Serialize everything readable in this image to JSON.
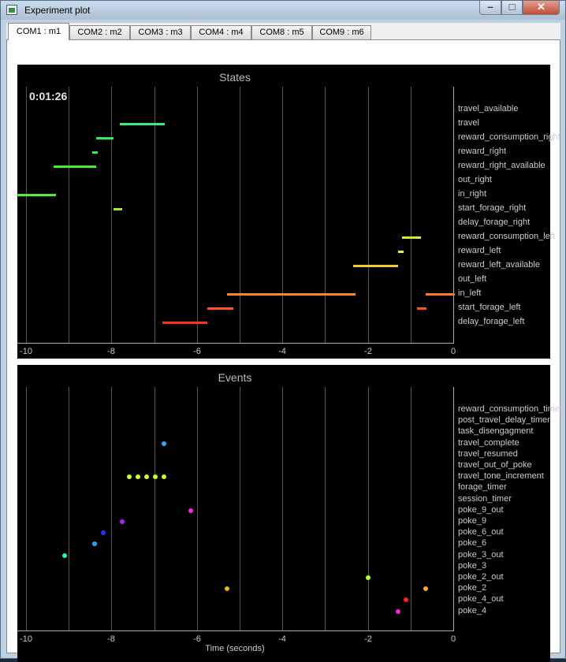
{
  "window": {
    "title": "Experiment plot",
    "controls": {
      "minimize": "–",
      "maximize": "□",
      "close": "✕"
    }
  },
  "tabs": [
    {
      "label": "COM1 : m1",
      "active": true
    },
    {
      "label": "COM2 : m2",
      "active": false
    },
    {
      "label": "COM3 : m3",
      "active": false
    },
    {
      "label": "COM4 : m4",
      "active": false
    },
    {
      "label": "COM8 : m5",
      "active": false
    },
    {
      "label": "COM9 : m6",
      "active": false
    }
  ],
  "states_plot": {
    "title": "States",
    "timer": "0:01:26",
    "xticks": [
      "-10",
      "-8",
      "-6",
      "-4",
      "-2",
      "0"
    ],
    "xlim": [
      -10,
      0
    ],
    "rows": [
      "travel_available",
      "travel",
      "reward_consumption_right",
      "reward_right",
      "reward_right_available",
      "out_right",
      "in_right",
      "start_forage_right",
      "delay_forage_right",
      "reward_consumption_left",
      "reward_left",
      "reward_left_available",
      "out_left",
      "in_left",
      "start_forage_left",
      "delay_forage_left"
    ],
    "segments": [
      {
        "row": "travel",
        "start": -7.8,
        "end": -6.75,
        "color": "#33ee77"
      },
      {
        "row": "reward_consumption_right",
        "start": -8.35,
        "end": -7.95,
        "color": "#33ee55"
      },
      {
        "row": "reward_right",
        "start": -8.45,
        "end": -8.33,
        "color": "#33ee44"
      },
      {
        "row": "reward_right_available",
        "start": -9.35,
        "end": -8.35,
        "color": "#44ee33"
      },
      {
        "row": "in_right",
        "start": -10.2,
        "end": -9.3,
        "color": "#55ee33"
      },
      {
        "row": "start_forage_right",
        "start": -7.95,
        "end": -7.75,
        "color": "#99ee33"
      },
      {
        "row": "reward_consumption_left",
        "start": -1.2,
        "end": -0.75,
        "color": "#ccee33"
      },
      {
        "row": "reward_left",
        "start": -1.3,
        "end": -1.18,
        "color": "#eeee33"
      },
      {
        "row": "reward_left_available",
        "start": -2.35,
        "end": -1.3,
        "color": "#eecc33"
      },
      {
        "row": "in_left",
        "start": -5.3,
        "end": -2.3,
        "color": "#ff8822"
      },
      {
        "row": "in_left",
        "start": -0.65,
        "end": 0.05,
        "color": "#ff7722"
      },
      {
        "row": "start_forage_left",
        "start": -5.75,
        "end": -5.15,
        "color": "#ff5522"
      },
      {
        "row": "start_forage_left",
        "start": -0.85,
        "end": -0.62,
        "color": "#ff5522"
      },
      {
        "row": "delay_forage_left",
        "start": -6.8,
        "end": -5.75,
        "color": "#ff3322"
      }
    ]
  },
  "events_plot": {
    "title": "Events",
    "xlabel": "Time (seconds)",
    "xticks": [
      "-10",
      "-8",
      "-6",
      "-4",
      "-2",
      "0"
    ],
    "xlim": [
      -10,
      0
    ],
    "rows": [
      "reward_consumption_timer",
      "post_travel_delay_timer",
      "task_disengagment",
      "travel_complete",
      "travel_resumed",
      "travel_out_of_poke",
      "travel_tone_increment",
      "forage_timer",
      "session_timer",
      "poke_9_out",
      "poke_9",
      "poke_6_out",
      "poke_6",
      "poke_3_out",
      "poke_3",
      "poke_2_out",
      "poke_2",
      "poke_4_out",
      "poke_4"
    ],
    "points": [
      {
        "row": "travel_complete",
        "t": -6.78,
        "color": "#33aaff"
      },
      {
        "row": "travel_tone_increment",
        "t": -7.58,
        "color": "#ccff22"
      },
      {
        "row": "travel_tone_increment",
        "t": -7.38,
        "color": "#ccff22"
      },
      {
        "row": "travel_tone_increment",
        "t": -7.18,
        "color": "#ccff22"
      },
      {
        "row": "travel_tone_increment",
        "t": -6.98,
        "color": "#ccff22"
      },
      {
        "row": "travel_tone_increment",
        "t": -6.78,
        "color": "#ccff22"
      },
      {
        "row": "poke_9_out",
        "t": -6.15,
        "color": "#ff22dd"
      },
      {
        "row": "poke_9",
        "t": -7.75,
        "color": "#aa22ff"
      },
      {
        "row": "poke_6_out",
        "t": -8.2,
        "color": "#2233ff"
      },
      {
        "row": "poke_6",
        "t": -8.4,
        "color": "#22aaff"
      },
      {
        "row": "poke_3_out",
        "t": -9.1,
        "color": "#22ffaa"
      },
      {
        "row": "poke_2_out",
        "t": -2.0,
        "color": "#bbff22"
      },
      {
        "row": "poke_2",
        "t": -5.3,
        "color": "#ffaa22"
      },
      {
        "row": "poke_2",
        "t": -0.65,
        "color": "#ffaa22"
      },
      {
        "row": "poke_4_out",
        "t": -1.1,
        "color": "#ff2222"
      },
      {
        "row": "poke_4",
        "t": -1.3,
        "color": "#ff22cc"
      }
    ]
  }
}
